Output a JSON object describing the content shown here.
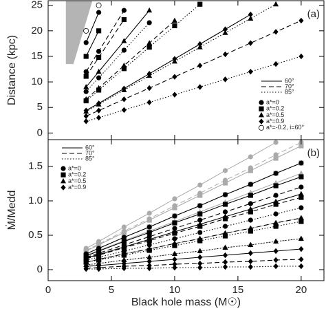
{
  "chart_data": [
    {
      "type": "line",
      "panel_label": "(a)",
      "y_label": "Distance (kpc)",
      "xlim": [
        0,
        21.8
      ],
      "xticks": [
        0,
        5,
        10,
        15,
        20
      ],
      "ylim": [
        -1.3,
        25.9
      ],
      "yticks": [
        0,
        5,
        10,
        15,
        20,
        25
      ],
      "shaded_region": {
        "x": [
          1.4,
          2.0,
          3.5,
          1.4
        ],
        "y": [
          13.5,
          13.5,
          25.9,
          25.9
        ],
        "color": "#b4b4b4"
      },
      "x": [
        3,
        4,
        6,
        8,
        10,
        12,
        14,
        16,
        18,
        20
      ],
      "line_legend": [
        {
          "label": "60°",
          "dash": "solid"
        },
        {
          "label": "70°",
          "dash": "dashed"
        },
        {
          "label": "85°",
          "dash": "dotted"
        }
      ],
      "marker_legend": [
        {
          "label": "a*=0",
          "marker": "circle"
        },
        {
          "label": "a*=0.2",
          "marker": "square"
        },
        {
          "label": "a*=0.5",
          "marker": "triangle"
        },
        {
          "label": "a*=0.9",
          "marker": "diamond"
        },
        {
          "label": "a*=-0.2, i=60°",
          "marker": "open-circle"
        }
      ],
      "series": [
        {
          "marker": "circle",
          "dash": "solid",
          "color": "#000000",
          "values": [
            17.7,
            23.6,
            null,
            null,
            null,
            null,
            null,
            null,
            null,
            null
          ]
        },
        {
          "marker": "circle",
          "dash": "dashed",
          "color": "#000000",
          "values": [
            12,
            16,
            24,
            null,
            null,
            null,
            null,
            null,
            null,
            null
          ]
        },
        {
          "marker": "circle",
          "dash": "dotted",
          "color": "#000000",
          "values": [
            8.1,
            10.8,
            16.2,
            21.6,
            null,
            null,
            null,
            null,
            null,
            null
          ]
        },
        {
          "marker": "square",
          "dash": "solid",
          "color": "#000000",
          "values": [
            15,
            20,
            null,
            null,
            null,
            null,
            null,
            null,
            null,
            null
          ]
        },
        {
          "marker": "square",
          "dash": "dashed",
          "color": "#000000",
          "values": [
            11.1,
            14.8,
            22.2,
            null,
            null,
            null,
            null,
            null,
            null,
            null
          ]
        },
        {
          "marker": "square",
          "dash": "dotted",
          "color": "#000000",
          "values": [
            6.3,
            8.4,
            12.6,
            16.8,
            21,
            25.2,
            null,
            null,
            null,
            null
          ]
        },
        {
          "marker": "triangle",
          "dash": "solid",
          "color": "#000000",
          "values": [
            9,
            12,
            18,
            24,
            null,
            null,
            null,
            null,
            null,
            null
          ]
        },
        {
          "marker": "triangle",
          "dash": "dashed",
          "color": "#000000",
          "values": [
            6.6,
            8.8,
            13.2,
            17.6,
            22,
            null,
            null,
            null,
            null,
            null
          ]
        },
        {
          "marker": "triangle",
          "dash": "dotted",
          "color": "#000000",
          "values": [
            4.2,
            5.6,
            8.4,
            11.2,
            14,
            16.8,
            19.6,
            22.4,
            25.2,
            null
          ]
        },
        {
          "marker": "diamond",
          "dash": "solid",
          "color": "#000000",
          "values": [
            4.4,
            5.8,
            8.7,
            11.6,
            14.5,
            17.4,
            20.3,
            23.2,
            null,
            null
          ]
        },
        {
          "marker": "diamond",
          "dash": "dashed",
          "color": "#000000",
          "values": [
            3.3,
            4.4,
            6.6,
            8.8,
            11,
            13.2,
            15.4,
            17.6,
            19.8,
            22
          ]
        },
        {
          "marker": "diamond",
          "dash": "dotted",
          "color": "#000000",
          "values": [
            2.3,
            3,
            4.5,
            6,
            7.5,
            9,
            10.5,
            12,
            13.5,
            15
          ]
        },
        {
          "marker": "open-circle",
          "dash": "solid",
          "color": "#ffffff",
          "values": [
            20,
            25,
            null,
            null,
            null,
            null,
            null,
            null,
            null,
            null
          ]
        }
      ]
    },
    {
      "type": "line",
      "panel_label": "(b)",
      "y_label": "Ṁ/Medd",
      "x_label": "Black hole mass (M☉)",
      "xlim": [
        0,
        21.8
      ],
      "xticks": [
        0,
        5,
        10,
        15,
        20
      ],
      "ylim": [
        -0.16,
        1.89
      ],
      "yticks": [
        0,
        0.5,
        {
          "value": 1,
          "label": "1.0"
        },
        1.5
      ],
      "x": [
        3,
        4,
        6,
        8,
        10,
        12,
        14,
        16,
        18,
        20
      ],
      "line_legend": [
        {
          "label": "60°",
          "dash": "solid"
        },
        {
          "label": "70°",
          "dash": "dashed"
        },
        {
          "label": "85°",
          "dash": "dotted"
        }
      ],
      "marker_legend": [
        {
          "label": "a*=0",
          "marker": "circle"
        },
        {
          "label": "a*=0.2",
          "marker": "square"
        },
        {
          "label": "a*=0.5",
          "marker": "triangle"
        },
        {
          "label": "a*=0.9",
          "marker": "diamond"
        }
      ],
      "series": [
        {
          "marker": "circle",
          "dash": "solid",
          "color": "#aaaaaa",
          "values": [
            0.31,
            0.41,
            0.62,
            0.82,
            1.03,
            1.23,
            1.44,
            1.64,
            1.85,
            null
          ]
        },
        {
          "marker": "circle",
          "dash": "dashed",
          "color": "#aaaaaa",
          "values": [
            0.28,
            0.37,
            0.56,
            0.74,
            0.93,
            1.11,
            1.3,
            1.48,
            1.67,
            1.85
          ]
        },
        {
          "marker": "square",
          "dash": "solid",
          "color": "#aaaaaa",
          "values": [
            0.27,
            0.36,
            0.54,
            0.72,
            0.9,
            1.08,
            1.26,
            1.44,
            1.62,
            1.8
          ]
        },
        {
          "marker": "square",
          "dash": "dashed",
          "color": "#aaaaaa",
          "values": [
            0.23,
            0.31,
            0.47,
            0.62,
            0.78,
            0.93,
            1.09,
            1.24,
            1.4,
            1.55
          ]
        },
        {
          "marker": "triangle",
          "dash": "solid",
          "color": "#aaaaaa",
          "values": [
            0.21,
            0.28,
            0.42,
            0.56,
            0.7,
            0.84,
            0.98,
            1.12,
            1.26,
            1.4
          ]
        },
        {
          "marker": "diamond",
          "dash": "solid",
          "color": "#aaaaaa",
          "values": [
            0.11,
            0.15,
            0.23,
            0.3,
            0.38,
            0.45,
            0.53,
            0.6,
            0.68,
            0.75
          ]
        },
        {
          "marker": "diamond",
          "dash": "dashed",
          "color": "#aaaaaa",
          "values": [
            0.07,
            0.09,
            0.14,
            0.18,
            0.23,
            0.27,
            0.32,
            0.36,
            0.41,
            0.45
          ]
        },
        {
          "marker": "circle",
          "dash": "solid",
          "color": "#000000",
          "values": [
            0.23,
            0.31,
            0.47,
            0.62,
            0.78,
            0.93,
            1.09,
            1.24,
            1.4,
            1.55
          ]
        },
        {
          "marker": "circle",
          "dash": "dashed",
          "color": "#000000",
          "values": [
            0.18,
            0.24,
            0.36,
            0.48,
            0.6,
            0.72,
            0.84,
            0.96,
            1.08,
            1.2
          ]
        },
        {
          "marker": "circle",
          "dash": "dotted",
          "color": "#000000",
          "values": [
            0.14,
            0.18,
            0.27,
            0.36,
            0.45,
            0.54,
            0.63,
            0.72,
            0.81,
            0.9
          ]
        },
        {
          "marker": "square",
          "dash": "solid",
          "color": "#000000",
          "values": [
            0.2,
            0.27,
            0.41,
            0.54,
            0.68,
            0.81,
            0.95,
            1.08,
            1.22,
            1.35
          ]
        },
        {
          "marker": "square",
          "dash": "dashed",
          "color": "#000000",
          "values": [
            0.16,
            0.21,
            0.32,
            0.42,
            0.53,
            0.63,
            0.74,
            0.84,
            0.95,
            1.05
          ]
        },
        {
          "marker": "square",
          "dash": "dotted",
          "color": "#000000",
          "values": [
            0.11,
            0.14,
            0.21,
            0.28,
            0.35,
            0.42,
            0.49,
            0.56,
            0.63,
            0.7
          ]
        },
        {
          "marker": "triangle",
          "dash": "solid",
          "color": "#000000",
          "values": [
            0.17,
            0.22,
            0.33,
            0.44,
            0.55,
            0.66,
            0.77,
            0.88,
            0.99,
            1.1
          ]
        },
        {
          "marker": "triangle",
          "dash": "dashed",
          "color": "#000000",
          "values": [
            0.11,
            0.15,
            0.23,
            0.3,
            0.38,
            0.45,
            0.53,
            0.6,
            0.68,
            0.75
          ]
        },
        {
          "marker": "triangle",
          "dash": "dotted",
          "color": "#000000",
          "values": [
            0.07,
            0.09,
            0.14,
            0.18,
            0.23,
            0.27,
            0.32,
            0.36,
            0.41,
            0.45
          ]
        },
        {
          "marker": "diamond",
          "dash": "solid",
          "color": "#000000",
          "values": [
            0.05,
            0.06,
            0.09,
            0.12,
            0.15,
            0.18,
            0.21,
            0.24,
            0.27,
            0.3
          ]
        },
        {
          "marker": "diamond",
          "dash": "dashed",
          "color": "#000000",
          "values": [
            0.02,
            0.03,
            0.05,
            0.06,
            0.08,
            0.09,
            0.11,
            0.12,
            0.14,
            0.15
          ]
        },
        {
          "marker": "diamond",
          "dash": "dotted",
          "color": "#000000",
          "values": [
            0.01,
            0.01,
            0.02,
            0.02,
            0.03,
            0.03,
            0.04,
            0.04,
            0.05,
            0.05
          ]
        }
      ]
    }
  ]
}
